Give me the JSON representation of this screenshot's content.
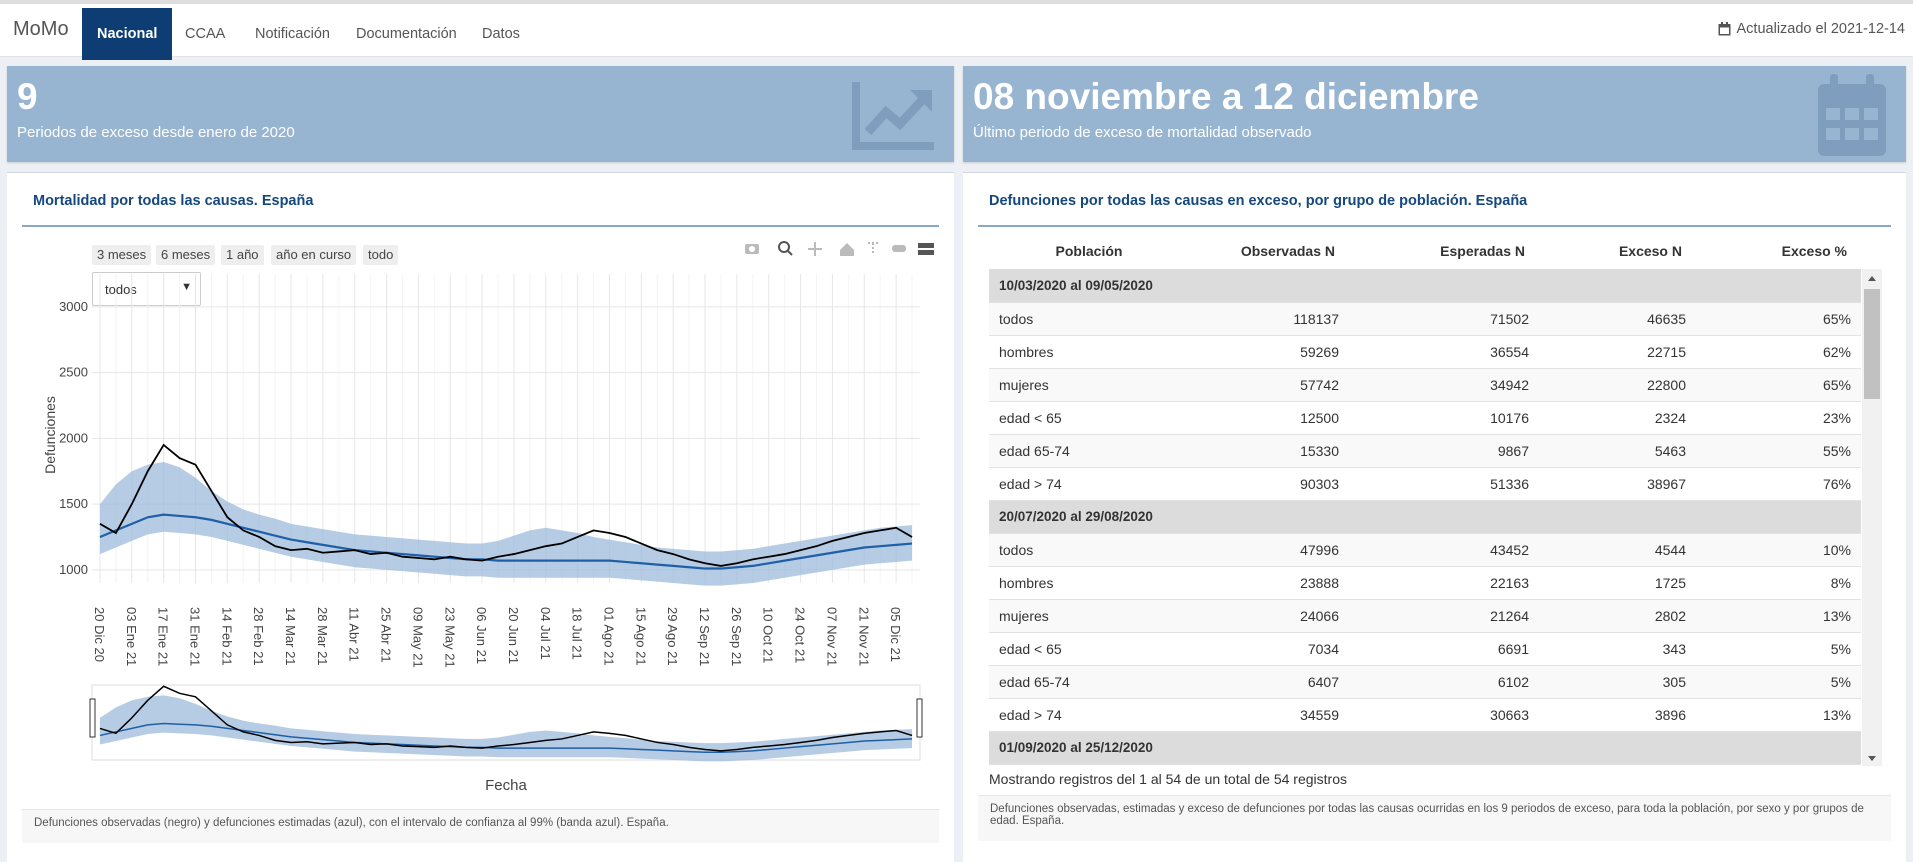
{
  "navbar": {
    "brand": "MoMo",
    "tabs": [
      "Nacional",
      "CCAA",
      "Notificación",
      "Documentación",
      "Datos"
    ],
    "active_tab": 0,
    "updated": "Actualizado el 2021-12-14"
  },
  "value_boxes": [
    {
      "value": "9",
      "subtitle": "Periodos de exceso desde enero de 2020"
    },
    {
      "value": "08 noviembre a 12 diciembre",
      "subtitle": "Último periodo de exceso de mortalidad observado"
    }
  ],
  "chart_panel": {
    "title": "Mortalidad por todas las causas. España",
    "range_buttons": [
      "3 meses",
      "6 meses",
      "1 año",
      "año en curso",
      "todo"
    ],
    "dropdown": "todos",
    "footer": "Defunciones observadas (negro) y defunciones estimadas (azul), con el intervalo de confianza al 99% (banda azul). España."
  },
  "chart_data": {
    "type": "line",
    "y_label": "Defunciones",
    "x_label": "Fecha",
    "categories": [
      "20 Dic 20",
      null,
      "03 Ene 21",
      null,
      "17 Ene 21",
      null,
      "31 Ene 21",
      null,
      "14 Feb 21",
      null,
      "28 Feb 21",
      null,
      "14 Mar 21",
      null,
      "28 Mar 21",
      null,
      "11 Abr 21",
      null,
      "25 Abr 21",
      null,
      "09 May 21",
      null,
      "23 May 21",
      null,
      "06 Jun 21",
      null,
      "20 Jun 21",
      null,
      "04 Jul 21",
      null,
      "18 Jul 21",
      null,
      "01 Ago 21",
      null,
      "15 Ago 21",
      null,
      "29 Ago 21",
      null,
      "12 Sep 21",
      null,
      "26 Sep 21",
      null,
      "10 Oct 21",
      null,
      "24 Oct 21",
      null,
      "07 Nov 21",
      null,
      "21 Nov 21",
      null,
      "05 Dic 21",
      null
    ],
    "band": {
      "color": "#9ebbdc",
      "lower": [
        1120,
        1170,
        1220,
        1270,
        1290,
        1280,
        1270,
        1250,
        1220,
        1190,
        1160,
        1130,
        1100,
        1080,
        1060,
        1040,
        1020,
        1010,
        1000,
        990,
        980,
        970,
        960,
        950,
        950,
        940,
        940,
        940,
        940,
        940,
        940,
        940,
        940,
        930,
        920,
        910,
        900,
        890,
        880,
        880,
        890,
        900,
        920,
        940,
        960,
        980,
        1000,
        1020,
        1040,
        1050,
        1060,
        1070
      ],
      "upper": [
        1500,
        1650,
        1750,
        1800,
        1820,
        1780,
        1700,
        1600,
        1520,
        1460,
        1420,
        1390,
        1350,
        1330,
        1310,
        1290,
        1270,
        1260,
        1250,
        1240,
        1230,
        1220,
        1210,
        1200,
        1200,
        1220,
        1260,
        1300,
        1320,
        1300,
        1280,
        1250,
        1230,
        1210,
        1190,
        1170,
        1160,
        1150,
        1140,
        1140,
        1150,
        1160,
        1180,
        1200,
        1220,
        1240,
        1260,
        1280,
        1300,
        1320,
        1330,
        1340
      ]
    },
    "series": [
      {
        "color": "#1f5fa6",
        "values": [
          1250,
          1300,
          1350,
          1400,
          1420,
          1410,
          1400,
          1380,
          1350,
          1320,
          1290,
          1260,
          1230,
          1210,
          1190,
          1170,
          1150,
          1140,
          1130,
          1120,
          1110,
          1100,
          1090,
          1080,
          1080,
          1070,
          1070,
          1070,
          1070,
          1070,
          1070,
          1070,
          1070,
          1060,
          1050,
          1040,
          1030,
          1020,
          1010,
          1010,
          1020,
          1030,
          1050,
          1070,
          1090,
          1110,
          1130,
          1150,
          1170,
          1180,
          1190,
          1200
        ]
      },
      {
        "color": "#000000",
        "values": [
          1350,
          1280,
          1500,
          1750,
          1950,
          1850,
          1800,
          1600,
          1400,
          1300,
          1250,
          1180,
          1150,
          1160,
          1130,
          1140,
          1150,
          1120,
          1130,
          1100,
          1090,
          1080,
          1100,
          1080,
          1070,
          1100,
          1120,
          1150,
          1180,
          1200,
          1250,
          1300,
          1280,
          1250,
          1200,
          1150,
          1120,
          1080,
          1050,
          1030,
          1050,
          1080,
          1100,
          1120,
          1150,
          1180,
          1220,
          1250,
          1280,
          1300,
          1320,
          1250
        ]
      }
    ],
    "ylim": [
      900,
      3250
    ],
    "yticks": [
      1000,
      1500,
      2000,
      2500,
      3000
    ],
    "grid": true
  },
  "table_panel": {
    "title": "Defunciones por todas las causas en exceso, por grupo de población. España",
    "headers": [
      "Población",
      "Observadas N",
      "Esperadas N",
      "Exceso N",
      "Exceso %"
    ],
    "groups": [
      {
        "period": "10/03/2020 al 09/05/2020",
        "rows": [
          [
            "todos",
            "118137",
            "71502",
            "46635",
            "65%"
          ],
          [
            "hombres",
            "59269",
            "36554",
            "22715",
            "62%"
          ],
          [
            "mujeres",
            "57742",
            "34942",
            "22800",
            "65%"
          ],
          [
            "edad < 65",
            "12500",
            "10176",
            "2324",
            "23%"
          ],
          [
            "edad 65-74",
            "15330",
            "9867",
            "5463",
            "55%"
          ],
          [
            "edad > 74",
            "90303",
            "51336",
            "38967",
            "76%"
          ]
        ]
      },
      {
        "period": "20/07/2020 al 29/08/2020",
        "rows": [
          [
            "todos",
            "47996",
            "43452",
            "4544",
            "10%"
          ],
          [
            "hombres",
            "23888",
            "22163",
            "1725",
            "8%"
          ],
          [
            "mujeres",
            "24066",
            "21264",
            "2802",
            "13%"
          ],
          [
            "edad < 65",
            "7034",
            "6691",
            "343",
            "5%"
          ],
          [
            "edad 65-74",
            "6407",
            "6102",
            "305",
            "5%"
          ],
          [
            "edad > 74",
            "34559",
            "30663",
            "3896",
            "13%"
          ]
        ]
      },
      {
        "period": "01/09/2020 al 25/12/2020",
        "rows": []
      }
    ],
    "info": "Mostrando registros del 1 al 54 de un total de 54 registros",
    "footer": "Defunciones observadas, estimadas y exceso de defunciones por todas las causas ocurridas en los 9 periodos de exceso, para toda la población, por sexo y por grupos de edad. España."
  }
}
